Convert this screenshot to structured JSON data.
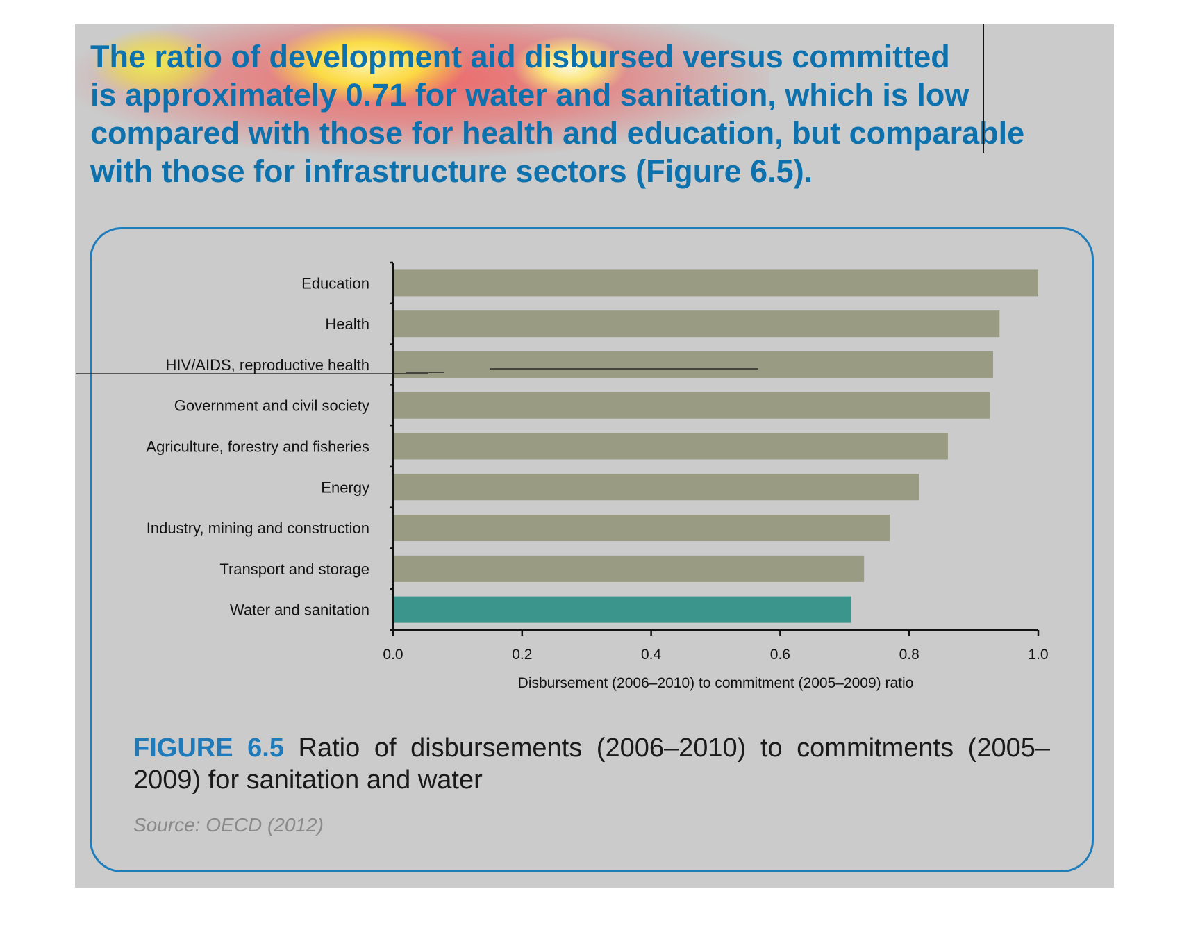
{
  "intro_text": "The ratio of development aid disbursed versus committed\nis approximately 0.71 for water and sanitation, which is low\ncompared with those for health and education, but comparable\nwith those for infrastructure sectors (Figure 6.5).",
  "figure": {
    "label": "FIGURE 6.5",
    "caption": " Ratio of disbursements (2006–2010) to commitments (2005–2009) for sanitation and water",
    "source": "Source: OECD (2012)"
  },
  "colors": {
    "bar": "#999b83",
    "highlight_bar": "#3c958c",
    "accent": "#1e7ab8"
  },
  "chart_data": {
    "type": "bar",
    "orientation": "horizontal",
    "categories": [
      "Education",
      "Health",
      "HIV/AIDS, reproductive health",
      "Government and civil society",
      "Agriculture, forestry and fisheries",
      "Energy",
      "Industry, mining and construction",
      "Transport and storage",
      "Water and sanitation"
    ],
    "values": [
      1.0,
      0.94,
      0.93,
      0.925,
      0.86,
      0.815,
      0.77,
      0.73,
      0.71
    ],
    "highlight_category": "Water and sanitation",
    "xlabel": "Disbursement (2006–2010) to commitment (2005–2009) ratio",
    "ylabel": "",
    "xlim": [
      0,
      1.0
    ],
    "xticks": [
      "0.0",
      "0.2",
      "0.4",
      "0.6",
      "0.8",
      "1.0"
    ],
    "grid": false
  }
}
